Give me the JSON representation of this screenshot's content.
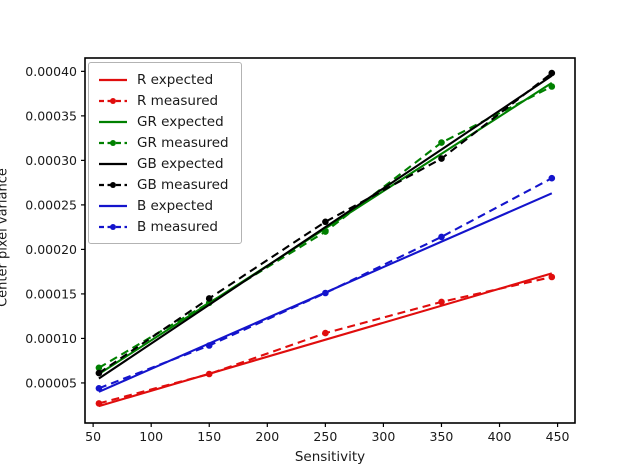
{
  "figure": {
    "background": "#ffffff"
  },
  "chart_data": {
    "type": "line",
    "title": "",
    "xlabel": "Sensitivity",
    "ylabel": "Center pixel variance",
    "grid": false,
    "legend_position": "upper-left",
    "xlim": [
      43,
      465
    ],
    "ylim": [
      5e-06,
      0.000415
    ],
    "xticks": [
      50,
      100,
      150,
      200,
      250,
      300,
      350,
      400,
      450
    ],
    "xtick_labels": [
      "50",
      "100",
      "150",
      "200",
      "250",
      "300",
      "350",
      "400",
      "450"
    ],
    "yticks": [
      5e-05,
      0.0001,
      0.00015,
      0.0002,
      0.00025,
      0.0003,
      0.00035,
      0.0004
    ],
    "ytick_labels": [
      "0.00005",
      "0.00010",
      "0.00015",
      "0.00020",
      "0.00025",
      "0.00030",
      "0.00035",
      "0.00040"
    ],
    "colors": {
      "R": "#e00d0d",
      "GR": "#008000",
      "GB": "#000000",
      "B": "#1414cc"
    },
    "series": [
      {
        "name": "R expected",
        "color": "#e00d0d",
        "dashed": false,
        "x": [
          55,
          445
        ],
        "y": [
          2.4e-05,
          0.000173
        ]
      },
      {
        "name": "R measured",
        "color": "#e00d0d",
        "dashed": true,
        "x": [
          55,
          150,
          250,
          350,
          445
        ],
        "y": [
          2.7e-05,
          6e-05,
          0.000106,
          0.000141,
          0.000169
        ]
      },
      {
        "name": "GR expected",
        "color": "#008000",
        "dashed": false,
        "x": [
          55,
          445
        ],
        "y": [
          6e-05,
          0.000387
        ]
      },
      {
        "name": "GR measured",
        "color": "#008000",
        "dashed": true,
        "x": [
          55,
          150,
          250,
          350,
          445
        ],
        "y": [
          6.7e-05,
          0.00014,
          0.00022,
          0.00032,
          0.000383
        ]
      },
      {
        "name": "GB expected",
        "color": "#000000",
        "dashed": false,
        "x": [
          55,
          445
        ],
        "y": [
          5.5e-05,
          0.000395
        ]
      },
      {
        "name": "GB measured",
        "color": "#000000",
        "dashed": true,
        "x": [
          55,
          150,
          250,
          350,
          445
        ],
        "y": [
          6.1e-05,
          0.000145,
          0.000231,
          0.000302,
          0.000398
        ]
      },
      {
        "name": "B expected",
        "color": "#1414cc",
        "dashed": false,
        "x": [
          55,
          445
        ],
        "y": [
          4e-05,
          0.000263
        ]
      },
      {
        "name": "B measured",
        "color": "#1414cc",
        "dashed": true,
        "x": [
          55,
          150,
          250,
          350,
          445
        ],
        "y": [
          4.4e-05,
          9.2e-05,
          0.000151,
          0.000214,
          0.00028
        ]
      }
    ]
  }
}
